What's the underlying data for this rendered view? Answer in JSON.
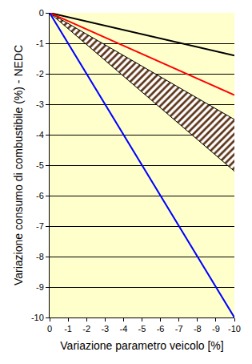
{
  "chart_data": {
    "type": "line",
    "x_label": "Variazione parametro veicolo [%]",
    "y_label": "Variazione consumo di combustibile (%) - NEDC",
    "x": [
      0,
      -10
    ],
    "series": [
      {
        "type": "band",
        "color": "#5c3317",
        "lower": [
          0,
          -5.2
        ],
        "upper": [
          0,
          -3.5
        ]
      },
      {
        "color": "#000000",
        "values": [
          0,
          -1.4
        ]
      },
      {
        "color": "#ff0000",
        "values": [
          0,
          -2.7
        ]
      },
      {
        "color": "#0000ff",
        "values": [
          0,
          -10
        ]
      }
    ],
    "xlim": [
      0,
      -10
    ],
    "xticks": [
      0,
      -1,
      -2,
      -3,
      -4,
      -5,
      -6,
      -7,
      -8,
      -9,
      -10
    ],
    "ylim": [
      -10,
      0
    ],
    "yticks": [
      0,
      -1,
      -2,
      -3,
      -4,
      -5,
      -6,
      -7,
      -8,
      -9,
      -10
    ],
    "grid": "y"
  }
}
